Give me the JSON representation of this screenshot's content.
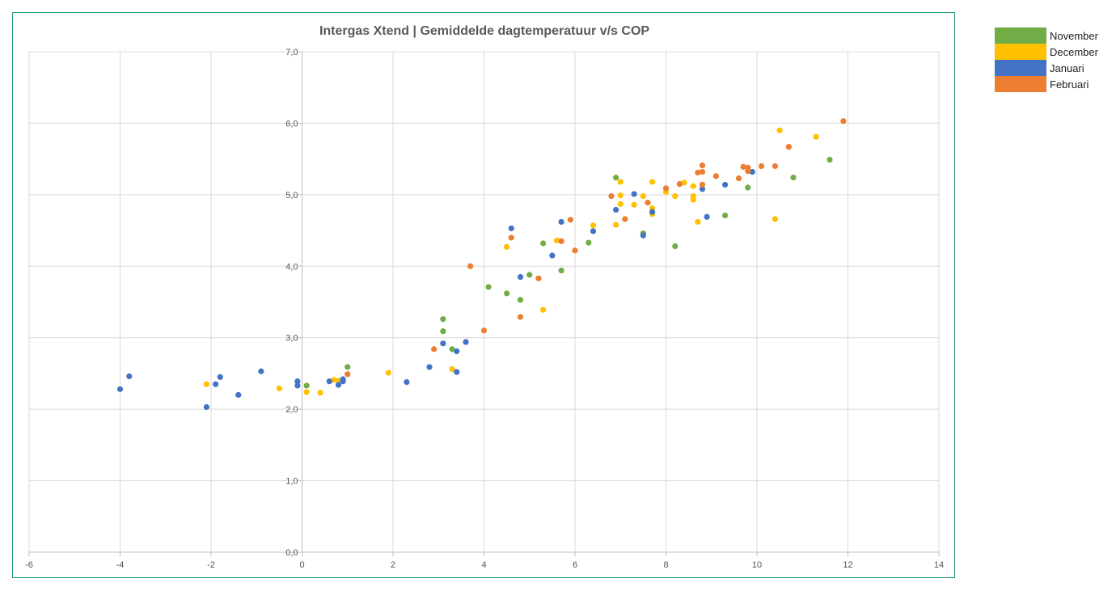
{
  "chart_data": {
    "type": "scatter",
    "title": "Intergas Xtend | Gemiddelde dagtemperatuur v/s COP",
    "xlabel": "",
    "ylabel": "",
    "xlim": [
      -6,
      14
    ],
    "ylim": [
      0,
      7
    ],
    "x_ticks": [
      "-6",
      "-4",
      "-2",
      "0",
      "2",
      "4",
      "6",
      "8",
      "10",
      "12",
      "14"
    ],
    "y_ticks": [
      "0,0",
      "1,0",
      "2,0",
      "3,0",
      "4,0",
      "5,0",
      "6,0",
      "7,0"
    ],
    "grid": true,
    "legend_position": "top-right outside",
    "series": [
      {
        "name": "November",
        "color": "#70ad47",
        "points": [
          [
            0.1,
            2.33
          ],
          [
            1.0,
            2.59
          ],
          [
            3.1,
            3.09
          ],
          [
            3.1,
            3.26
          ],
          [
            3.3,
            2.84
          ],
          [
            4.1,
            3.71
          ],
          [
            4.5,
            3.62
          ],
          [
            4.8,
            3.53
          ],
          [
            5.0,
            3.88
          ],
          [
            5.3,
            4.32
          ],
          [
            5.7,
            3.94
          ],
          [
            6.3,
            4.33
          ],
          [
            6.9,
            5.24
          ],
          [
            7.5,
            4.46
          ],
          [
            8.2,
            4.28
          ],
          [
            9.3,
            4.71
          ],
          [
            9.8,
            5.1
          ],
          [
            10.8,
            5.24
          ],
          [
            11.6,
            5.49
          ]
        ]
      },
      {
        "name": "December",
        "color": "#ffc000",
        "points": [
          [
            -2.1,
            2.35
          ],
          [
            -0.5,
            2.29
          ],
          [
            0.1,
            2.24
          ],
          [
            0.4,
            2.23
          ],
          [
            0.7,
            2.41
          ],
          [
            0.8,
            2.4
          ],
          [
            1.9,
            2.51
          ],
          [
            3.3,
            2.56
          ],
          [
            4.5,
            4.27
          ],
          [
            5.3,
            3.39
          ],
          [
            5.6,
            4.36
          ],
          [
            6.4,
            4.57
          ],
          [
            6.9,
            4.58
          ],
          [
            7.0,
            4.87
          ],
          [
            7.0,
            4.99
          ],
          [
            7.0,
            5.18
          ],
          [
            7.3,
            4.86
          ],
          [
            7.5,
            4.98
          ],
          [
            7.7,
            4.73
          ],
          [
            7.7,
            4.81
          ],
          [
            7.7,
            5.18
          ],
          [
            8.0,
            5.04
          ],
          [
            8.2,
            4.98
          ],
          [
            8.4,
            5.17
          ],
          [
            8.6,
            4.93
          ],
          [
            8.6,
            4.98
          ],
          [
            8.6,
            5.12
          ],
          [
            8.7,
            4.62
          ],
          [
            10.4,
            4.66
          ],
          [
            10.5,
            5.9
          ],
          [
            11.3,
            5.81
          ]
        ]
      },
      {
        "name": "Januari",
        "color": "#4472c4",
        "points": [
          [
            -4.0,
            2.28
          ],
          [
            -3.8,
            2.46
          ],
          [
            -2.1,
            2.03
          ],
          [
            -1.9,
            2.35
          ],
          [
            -1.8,
            2.45
          ],
          [
            -1.4,
            2.2
          ],
          [
            -0.9,
            2.53
          ],
          [
            -0.1,
            2.33
          ],
          [
            -0.1,
            2.39
          ],
          [
            0.6,
            2.39
          ],
          [
            0.8,
            2.34
          ],
          [
            0.9,
            2.39
          ],
          [
            0.9,
            2.42
          ],
          [
            2.3,
            2.38
          ],
          [
            2.8,
            2.59
          ],
          [
            3.1,
            2.92
          ],
          [
            3.4,
            2.52
          ],
          [
            3.4,
            2.81
          ],
          [
            3.6,
            2.94
          ],
          [
            4.6,
            4.53
          ],
          [
            4.8,
            3.85
          ],
          [
            5.5,
            4.15
          ],
          [
            5.7,
            4.62
          ],
          [
            6.4,
            4.49
          ],
          [
            6.9,
            4.79
          ],
          [
            7.3,
            5.01
          ],
          [
            7.5,
            4.43
          ],
          [
            7.7,
            4.76
          ],
          [
            8.8,
            5.08
          ],
          [
            8.9,
            4.69
          ],
          [
            9.3,
            5.14
          ],
          [
            9.9,
            5.32
          ]
        ]
      },
      {
        "name": "Februari",
        "color": "#ed7d31",
        "points": [
          [
            1.0,
            2.49
          ],
          [
            2.9,
            2.84
          ],
          [
            3.7,
            4.0
          ],
          [
            4.0,
            3.1
          ],
          [
            4.6,
            4.4
          ],
          [
            4.8,
            3.29
          ],
          [
            5.2,
            3.83
          ],
          [
            5.7,
            4.35
          ],
          [
            5.9,
            4.65
          ],
          [
            6.0,
            4.22
          ],
          [
            6.8,
            4.98
          ],
          [
            7.1,
            4.66
          ],
          [
            7.6,
            4.89
          ],
          [
            8.0,
            5.09
          ],
          [
            8.3,
            5.15
          ],
          [
            8.7,
            5.31
          ],
          [
            8.8,
            5.14
          ],
          [
            8.8,
            5.32
          ],
          [
            8.8,
            5.41
          ],
          [
            9.1,
            5.26
          ],
          [
            9.6,
            5.23
          ],
          [
            9.7,
            5.39
          ],
          [
            9.8,
            5.33
          ],
          [
            9.8,
            5.38
          ],
          [
            10.1,
            5.4
          ],
          [
            10.4,
            5.4
          ],
          [
            10.7,
            5.67
          ],
          [
            11.9,
            6.03
          ]
        ]
      }
    ]
  }
}
